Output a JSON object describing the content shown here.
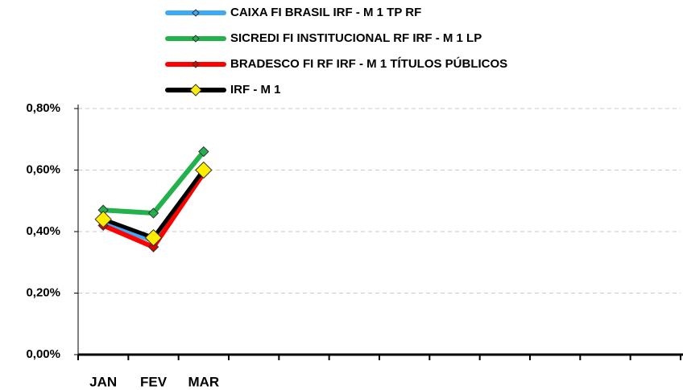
{
  "chart_data": {
    "type": "line",
    "categories": [
      "JAN",
      "FEV",
      "MAR",
      null,
      null,
      null,
      null,
      null,
      null,
      null,
      null,
      null
    ],
    "series": [
      {
        "name": "CAIXA FI BRASIL IRF - M 1 TP RF",
        "color": "#3fa9f5",
        "marker_color": "#3fa9f5",
        "values": [
          0.43,
          0.37,
          0.6,
          null,
          null,
          null,
          null,
          null,
          null,
          null,
          null,
          null
        ]
      },
      {
        "name": "SICREDI FI INSTITUCIONAL RF IRF - M 1 LP",
        "color": "#22b14c",
        "marker_color": "#22b14c",
        "values": [
          0.47,
          0.46,
          0.66,
          null,
          null,
          null,
          null,
          null,
          null,
          null,
          null,
          null
        ]
      },
      {
        "name": "BRADESCO FI RF IRF - M 1 TÍTULOS PÚBLICOS",
        "color": "#ff0000",
        "marker_color": "#e00000",
        "values": [
          0.42,
          0.35,
          0.59,
          null,
          null,
          null,
          null,
          null,
          null,
          null,
          null,
          null
        ]
      },
      {
        "name": "IRF - M 1",
        "color": "#000000",
        "marker_color": "#ffee00",
        "values": [
          0.44,
          0.38,
          0.6,
          null,
          null,
          null,
          null,
          null,
          null,
          null,
          null,
          null
        ]
      }
    ],
    "ylim": [
      0,
      0.8
    ],
    "yticks": [
      {
        "value": 0,
        "label": "0,00%"
      },
      {
        "value": 0.2,
        "label": "0,20%"
      },
      {
        "value": 0.4,
        "label": "0,40%"
      },
      {
        "value": 0.6,
        "label": "0,60%"
      },
      {
        "value": 0.8,
        "label": "0,80%"
      }
    ],
    "grid": true
  }
}
